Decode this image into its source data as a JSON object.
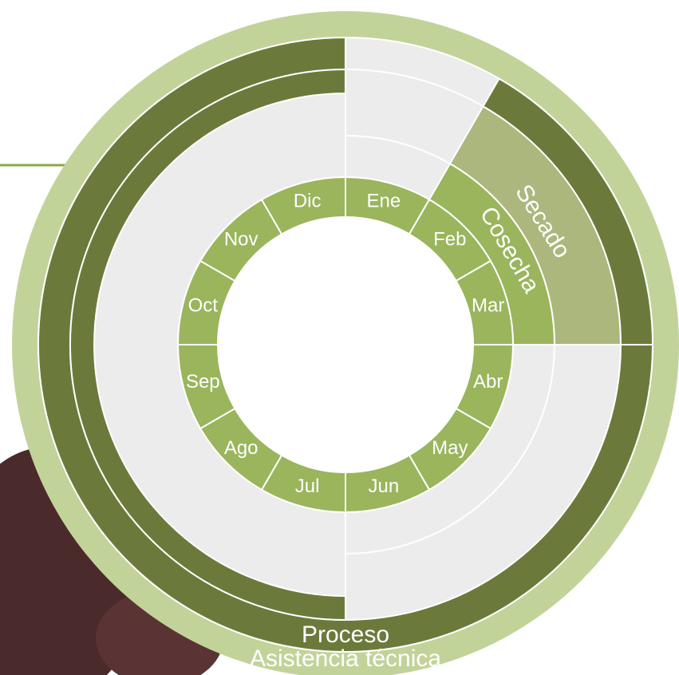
{
  "months": [
    "Ene",
    "Feb",
    "Mar",
    "Abr",
    "May",
    "Jun",
    "Jul",
    "Ago",
    "Sep",
    "Oct",
    "Nov",
    "Dic"
  ],
  "rings": [
    "Cosecha",
    "Secado",
    "Proceso",
    "Asistencia técnica"
  ]
}
